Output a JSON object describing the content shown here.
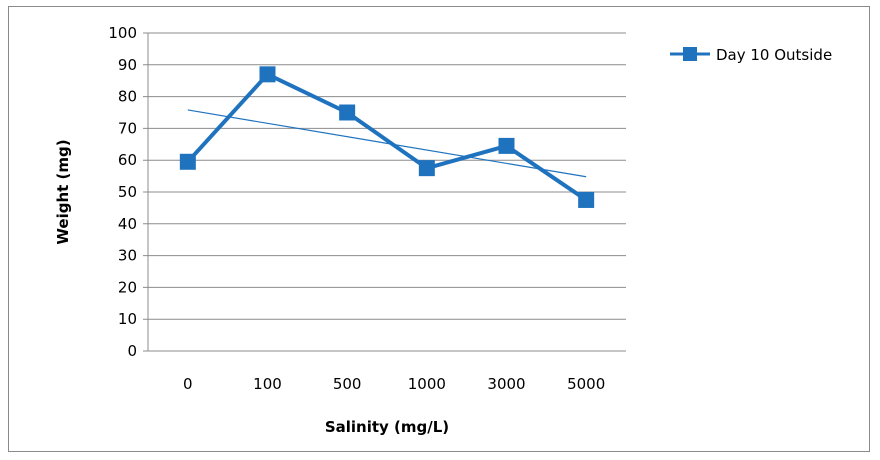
{
  "chart_data": {
    "type": "line",
    "title": "",
    "xlabel": "Salinity (mg/L)",
    "ylabel": "Weight (mg)",
    "categories": [
      "0",
      "100",
      "500",
      "1000",
      "3000",
      "5000"
    ],
    "yticks": [
      "0",
      "10",
      "20",
      "30",
      "40",
      "50",
      "60",
      "70",
      "80",
      "90",
      "100"
    ],
    "ylim": [
      0,
      100
    ],
    "grid": "horizontal",
    "legend_position": "top-right",
    "series": [
      {
        "name": "Day 10 Outside",
        "values": [
          59.5,
          87,
          75,
          57.5,
          64.5,
          47.5
        ],
        "color": "#1f73be",
        "marker": "square"
      }
    ],
    "trendline": {
      "type": "linear",
      "color": "#1f73be",
      "start": 75.8,
      "end": 54.8
    }
  }
}
